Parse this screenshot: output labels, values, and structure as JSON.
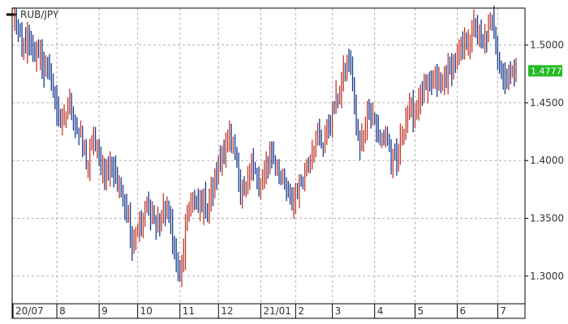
{
  "chart_data": {
    "type": "bar",
    "subtype": "ohlc",
    "symbol": "RUB/JPY",
    "last_price": "1.4777",
    "colors": {
      "up": "#c0392b",
      "down": "#1a3a8f",
      "grid": "#b0b0b0",
      "frame": "#000000",
      "price_badge": "#22bb22"
    },
    "ylim": [
      1.276,
      1.532
    ],
    "y_ticks": [
      "1.3000",
      "1.3500",
      "1.4000",
      "1.4500",
      "1.5000"
    ],
    "x_ticks": [
      {
        "label": "20/07",
        "index": 0
      },
      {
        "label": "8",
        "index": 23
      },
      {
        "label": "9",
        "index": 46
      },
      {
        "label": "10",
        "index": 67
      },
      {
        "label": "11",
        "index": 90
      },
      {
        "label": "12",
        "index": 111
      },
      {
        "label": "21/01",
        "index": 134
      },
      {
        "label": "2",
        "index": 153
      },
      {
        "label": "3",
        "index": 173
      },
      {
        "label": "4",
        "index": 196
      },
      {
        "label": "5",
        "index": 218
      },
      {
        "label": "6",
        "index": 241
      },
      {
        "label": "7",
        "index": 263
      }
    ],
    "grid": true,
    "grid_style": "dashed",
    "legend_position": "top-left",
    "anchors": [
      [
        0,
        1.522
      ],
      [
        4,
        1.498
      ],
      [
        7,
        1.505
      ],
      [
        10,
        1.492
      ],
      [
        13,
        1.496
      ],
      [
        16,
        1.48
      ],
      [
        20,
        1.47
      ],
      [
        23,
        1.445
      ],
      [
        26,
        1.428
      ],
      [
        30,
        1.452
      ],
      [
        33,
        1.432
      ],
      [
        37,
        1.414
      ],
      [
        40,
        1.398
      ],
      [
        43,
        1.42
      ],
      [
        46,
        1.4
      ],
      [
        49,
        1.388
      ],
      [
        53,
        1.396
      ],
      [
        56,
        1.38
      ],
      [
        59,
        1.37
      ],
      [
        62,
        1.352
      ],
      [
        64,
        1.326
      ],
      [
        66,
        1.34
      ],
      [
        69,
        1.345
      ],
      [
        72,
        1.363
      ],
      [
        75,
        1.355
      ],
      [
        77,
        1.344
      ],
      [
        80,
        1.35
      ],
      [
        83,
        1.36
      ],
      [
        86,
        1.335
      ],
      [
        88,
        1.312
      ],
      [
        90,
        1.296
      ],
      [
        93,
        1.338
      ],
      [
        96,
        1.37
      ],
      [
        99,
        1.358
      ],
      [
        102,
        1.364
      ],
      [
        105,
        1.358
      ],
      [
        108,
        1.375
      ],
      [
        111,
        1.395
      ],
      [
        114,
        1.412
      ],
      [
        117,
        1.418
      ],
      [
        120,
        1.403
      ],
      [
        123,
        1.38
      ],
      [
        126,
        1.373
      ],
      [
        129,
        1.398
      ],
      [
        131,
        1.386
      ],
      [
        134,
        1.378
      ],
      [
        137,
        1.396
      ],
      [
        140,
        1.405
      ],
      [
        143,
        1.395
      ],
      [
        146,
        1.382
      ],
      [
        149,
        1.368
      ],
      [
        151,
        1.365
      ],
      [
        153,
        1.372
      ],
      [
        156,
        1.383
      ],
      [
        159,
        1.398
      ],
      [
        162,
        1.412
      ],
      [
        165,
        1.42
      ],
      [
        168,
        1.415
      ],
      [
        171,
        1.432
      ],
      [
        173,
        1.442
      ],
      [
        176,
        1.455
      ],
      [
        179,
        1.472
      ],
      [
        182,
        1.485
      ],
      [
        184,
        1.468
      ],
      [
        186,
        1.43
      ],
      [
        188,
        1.41
      ],
      [
        190,
        1.425
      ],
      [
        193,
        1.445
      ],
      [
        196,
        1.435
      ],
      [
        199,
        1.415
      ],
      [
        202,
        1.425
      ],
      [
        205,
        1.402
      ],
      [
        208,
        1.398
      ],
      [
        211,
        1.425
      ],
      [
        214,
        1.44
      ],
      [
        217,
        1.442
      ],
      [
        220,
        1.455
      ],
      [
        224,
        1.462
      ],
      [
        228,
        1.466
      ],
      [
        232,
        1.468
      ],
      [
        236,
        1.476
      ],
      [
        240,
        1.484
      ],
      [
        244,
        1.498
      ],
      [
        248,
        1.51
      ],
      [
        251,
        1.518
      ],
      [
        253,
        1.508
      ],
      [
        255,
        1.498
      ],
      [
        257,
        1.51
      ],
      [
        259,
        1.52
      ],
      [
        261,
        1.515
      ],
      [
        263,
        1.495
      ],
      [
        265,
        1.478
      ],
      [
        267,
        1.47
      ],
      [
        269,
        1.478
      ],
      [
        271,
        1.472
      ],
      [
        273,
        1.477
      ]
    ]
  }
}
